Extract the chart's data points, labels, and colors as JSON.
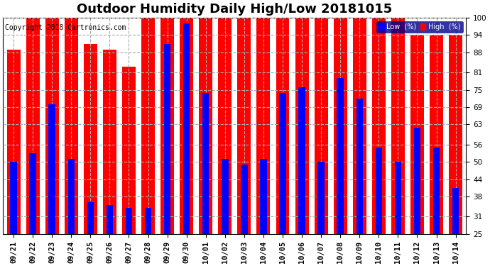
{
  "title": "Outdoor Humidity Daily High/Low 20181015",
  "copyright": "Copyright 2018 Cartronics.com",
  "categories": [
    "09/21",
    "09/22",
    "09/23",
    "09/24",
    "09/25",
    "09/26",
    "09/27",
    "09/28",
    "09/29",
    "09/30",
    "10/01",
    "10/02",
    "10/03",
    "10/04",
    "10/05",
    "10/06",
    "10/07",
    "10/08",
    "10/09",
    "10/10",
    "10/11",
    "10/12",
    "10/13",
    "10/14"
  ],
  "high_values": [
    89,
    100,
    100,
    100,
    91,
    89,
    83,
    100,
    100,
    100,
    100,
    100,
    100,
    100,
    100,
    100,
    100,
    100,
    100,
    100,
    100,
    94,
    94,
    94
  ],
  "low_values": [
    50,
    53,
    70,
    51,
    36,
    35,
    34,
    34,
    91,
    98,
    74,
    51,
    49,
    51,
    74,
    76,
    50,
    79,
    72,
    55,
    50,
    62,
    55,
    41
  ],
  "high_color": "#ff0000",
  "low_color": "#0000ff",
  "bg_color": "#ffffff",
  "grid_color": "#aaaaaa",
  "ylim_min": 25,
  "ylim_max": 100,
  "yticks": [
    25,
    31,
    38,
    44,
    50,
    56,
    63,
    69,
    75,
    81,
    88,
    94,
    100
  ],
  "high_bar_width": 0.7,
  "low_bar_width": 0.35,
  "legend_low_label": "Low  (%)",
  "legend_high_label": "High  (%)",
  "title_fontsize": 13,
  "tick_fontsize": 7.5,
  "copyright_fontsize": 7
}
